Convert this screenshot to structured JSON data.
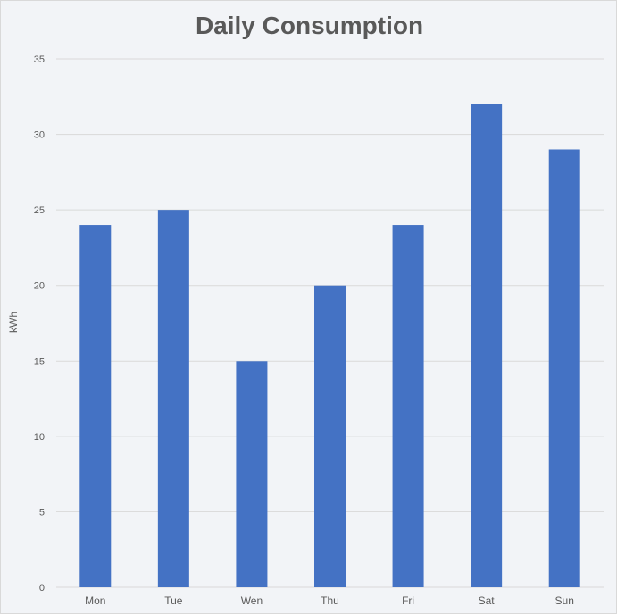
{
  "chart_data": {
    "type": "bar",
    "title": "Daily Consumption",
    "xlabel": "",
    "ylabel": "kWh",
    "categories": [
      "Mon",
      "Tue",
      "Wen",
      "Thu",
      "Fri",
      "Sat",
      "Sun"
    ],
    "values": [
      24,
      25,
      15,
      20,
      24,
      32,
      29
    ],
    "ylim": [
      0,
      35
    ],
    "yticks": [
      0,
      5,
      10,
      15,
      20,
      25,
      30,
      35
    ],
    "grid": true,
    "legend": "none",
    "colors": {
      "bar": "#4472c4",
      "grid": "#d9d9d9",
      "text": "#595959",
      "background": "#f2f4f7"
    }
  }
}
